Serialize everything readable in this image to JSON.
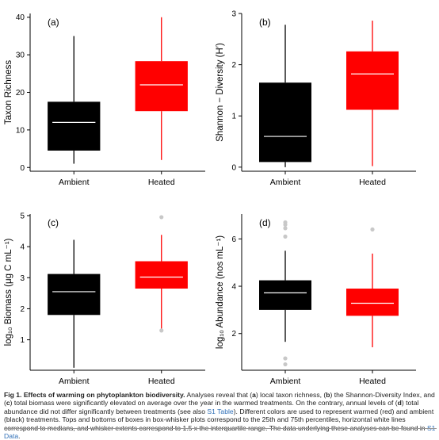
{
  "chart_data": [
    {
      "type": "box",
      "panel_label": "(a)",
      "ylabel": "Taxon Richness",
      "ylim": [
        -1,
        41
      ],
      "yticks": [
        0,
        10,
        20,
        30,
        40
      ],
      "categories": [
        "Ambient",
        "Heated"
      ],
      "boxes": [
        {
          "category": "Ambient",
          "color": "#000000",
          "whisker_low": 1,
          "q1": 4.5,
          "median": 12,
          "q3": 17.5,
          "whisker_high": 35,
          "outliers": []
        },
        {
          "category": "Heated",
          "color": "#ff0000",
          "whisker_low": 2,
          "q1": 15,
          "median": 22,
          "q3": 28.3,
          "whisker_high": 40,
          "outliers": []
        }
      ]
    },
    {
      "type": "box",
      "panel_label": "(b)",
      "ylabel": "Shannon − Diversity (H′)",
      "ylim": [
        -0.08,
        3.0
      ],
      "yticks": [
        0,
        1,
        2,
        3
      ],
      "categories": [
        "Ambient",
        "Heated"
      ],
      "boxes": [
        {
          "category": "Ambient",
          "color": "#000000",
          "whisker_low": 0.0,
          "q1": 0.1,
          "median": 0.6,
          "q3": 1.65,
          "whisker_high": 2.78,
          "outliers": []
        },
        {
          "category": "Heated",
          "color": "#ff0000",
          "whisker_low": 0.02,
          "q1": 1.12,
          "median": 1.82,
          "q3": 2.26,
          "whisker_high": 2.86,
          "outliers": []
        }
      ]
    },
    {
      "type": "box",
      "panel_label": "(c)",
      "ylabel": "log₁₀ Biomass (μg C mL⁻¹)",
      "ylim": [
        0.02,
        5.05
      ],
      "yticks": [
        1,
        2,
        3,
        4,
        5
      ],
      "categories": [
        "Ambient",
        "Heated"
      ],
      "boxes": [
        {
          "category": "Ambient",
          "color": "#000000",
          "whisker_low": 0.1,
          "q1": 1.8,
          "median": 2.55,
          "q3": 3.12,
          "whisker_high": 4.22,
          "outliers": []
        },
        {
          "category": "Heated",
          "color": "#ff0000",
          "whisker_low": 1.3,
          "q1": 2.65,
          "median": 3.02,
          "q3": 3.53,
          "whisker_high": 4.38,
          "outliers": [
            4.95,
            1.3
          ]
        }
      ]
    },
    {
      "type": "box",
      "panel_label": "(d)",
      "ylabel": "log₁₀ Abundance (nos mL⁻¹)",
      "ylim": [
        0.45,
        7.05
      ],
      "yticks": [
        2,
        4,
        6
      ],
      "categories": [
        "Ambient",
        "Heated"
      ],
      "boxes": [
        {
          "category": "Ambient",
          "color": "#000000",
          "whisker_low": 1.65,
          "q1": 3.0,
          "median": 3.72,
          "q3": 4.25,
          "whisker_high": 5.5,
          "outliers": [
            6.7,
            6.6,
            6.45,
            6.1,
            0.95,
            0.7
          ]
        },
        {
          "category": "Heated",
          "color": "#ff0000",
          "whisker_low": 1.42,
          "q1": 2.75,
          "median": 3.28,
          "q3": 3.9,
          "whisker_high": 5.38,
          "outliers": [
            6.4
          ]
        }
      ]
    }
  ],
  "caption": {
    "label": "Fig 1. Effects of warming on phytoplankton biodiversity.",
    "part1": " Analyses reveal that (",
    "a": "a",
    "part2": ") local taxon richness, (",
    "b": "b",
    "part3": ") the Shannon-Diversity Index, and (",
    "c": "c",
    "part4": ") total biomass were significantly elevated on average over the year in the warmed treatments. On the contrary, annual levels of (",
    "d": "d",
    "part5": ") total abundance did not differ significantly between treatments (see also ",
    "link1": "S1 Table",
    "part6": "). Different colors are used to represent warmed (red) and ambient (black) treatments. Tops and bottoms of boxes in box-whisker plots correspond to the 25th and 75th percentiles, horizontal white lines correspond to medians, and whisker extents correspond to 1.5 x the interquartile range. The data underlying these analyses can be found in ",
    "link2": "S1 Data",
    "part7": "."
  }
}
